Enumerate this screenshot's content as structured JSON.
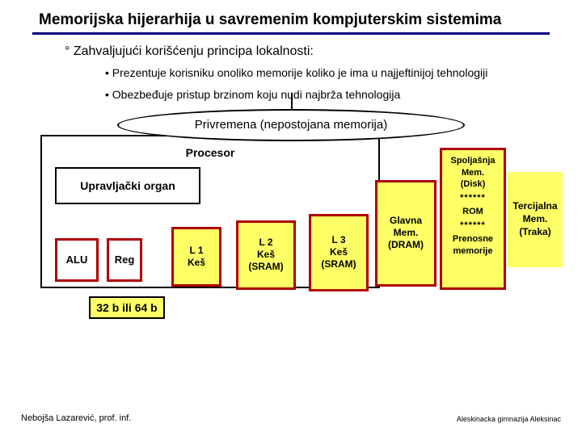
{
  "title": "Memorijska hijerarhija u savremenim kompjuterskim sistemima",
  "bullet_main": "Zahvaljujući korišćenju principa lokalnosti:",
  "bullet_sub1": "Prezentuje korisniku onoliko memorije koliko je ima u najjeftinijoj tehnologiji",
  "bullet_sub2": "Obezbeđuje pristup brzinom koju nudi najbrža tehnologija",
  "oval": "Privremena (nepostojana memorija)",
  "procesor": "Procesor",
  "upravljacki": "Upravljački organ",
  "alu": "ALU",
  "reg": "Reg",
  "l1_a": "L 1",
  "l1_b": "Keš",
  "l2_a": "L 2",
  "l2_b": "Keš",
  "l2_c": "(SRAM)",
  "l3_a": "L 3",
  "l3_b": "Keš",
  "l3_c": "(SRAM)",
  "glavna_a": "Glavna",
  "glavna_b": "Mem.",
  "glavna_c": "(DRAM)",
  "spolj_a": "Spoljašnja",
  "spolj_b": "Mem.",
  "spolj_c": "(Disk)",
  "spolj_d": "******",
  "spolj_rom": "ROM",
  "spolj_e": "******",
  "spolj_f": "Prenosne",
  "spolj_g": "memorije",
  "terc_a": "Tercijalna",
  "terc_b": "Mem.",
  "terc_c": "(Traka)",
  "tag": "32 b ili 64 b",
  "footL": "Nebojša Lazarević, prof. inf.",
  "footR": "Aleskinacka gimnazija Aleksinac",
  "colors": {
    "accent_underline": "#000080",
    "box_fill": "#ffff66",
    "box_border": "#b00000"
  }
}
